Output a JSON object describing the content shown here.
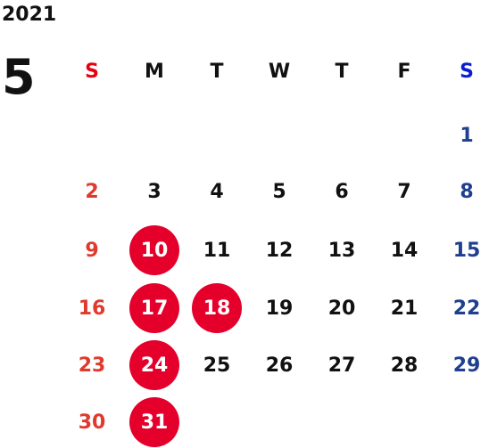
{
  "year": "2021",
  "month": "5",
  "weekdays": [
    "S",
    "M",
    "T",
    "W",
    "T",
    "F",
    "S"
  ],
  "weeks": [
    [
      null,
      null,
      null,
      null,
      null,
      null,
      1
    ],
    [
      2,
      3,
      4,
      5,
      6,
      7,
      8
    ],
    [
      9,
      10,
      11,
      12,
      13,
      14,
      15
    ],
    [
      16,
      17,
      18,
      19,
      20,
      21,
      22
    ],
    [
      23,
      24,
      25,
      26,
      27,
      28,
      29
    ],
    [
      30,
      31,
      null,
      null,
      null,
      null,
      null
    ]
  ],
  "highlighted": [
    10,
    17,
    18,
    24,
    31
  ],
  "colors": {
    "sunday": "#e03a2e",
    "saturday": "#1f3f8f",
    "sunday_header": "#e8000f",
    "saturday_header": "#0a1ed0",
    "default": "#111111",
    "highlight": "#e4002b",
    "highlight_text": "#ffffff"
  }
}
